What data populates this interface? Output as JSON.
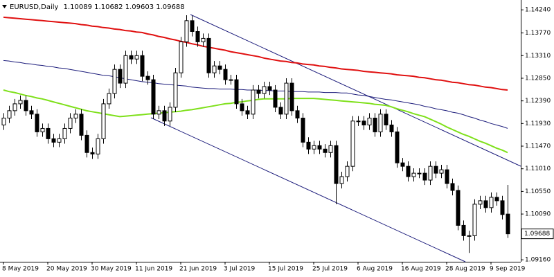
{
  "chart_data": {
    "type": "candlestick",
    "symbol": "EURUSD,Daily",
    "categories": [
      "8 May 2019",
      null,
      null,
      null,
      null,
      null,
      null,
      null,
      "20 May 2019",
      null,
      null,
      null,
      null,
      null,
      null,
      null,
      "30 May 2019",
      null,
      null,
      null,
      null,
      null,
      null,
      null,
      "11 Jun 2019",
      null,
      null,
      null,
      null,
      null,
      null,
      null,
      "21 Jun 2019",
      null,
      null,
      null,
      null,
      null,
      null,
      null,
      "3 Jul 2019",
      null,
      null,
      null,
      null,
      null,
      null,
      null,
      "15 Jul 2019",
      null,
      null,
      null,
      null,
      null,
      null,
      null,
      "25 Jul 2019",
      null,
      null,
      null,
      null,
      null,
      null,
      null,
      "6 Aug 2019",
      null,
      null,
      null,
      null,
      null,
      null,
      null,
      "16 Aug 2019",
      null,
      null,
      null,
      null,
      null,
      null,
      null,
      "28 Aug 2019",
      null,
      null,
      null,
      null,
      null,
      null,
      null,
      "9 Sep 2019",
      null,
      null,
      null
    ],
    "open": [
      1.119,
      1.1204,
      1.1219,
      1.1233,
      1.124,
      1.1219,
      1.1212,
      1.1176,
      1.1183,
      1.1162,
      1.1155,
      1.1162,
      1.1183,
      1.1204,
      1.1212,
      1.1169,
      1.1134,
      1.1131,
      1.1162,
      1.1233,
      1.1254,
      1.1303,
      1.1275,
      1.1331,
      1.1324,
      1.1331,
      1.1289,
      1.1282,
      1.1212,
      1.1219,
      1.1198,
      1.1226,
      1.1296,
      1.1359,
      1.1402,
      1.138,
      1.1359,
      1.1366,
      1.1296,
      1.131,
      1.1303,
      1.1282,
      1.1282,
      1.1233,
      1.1219,
      1.1212,
      1.1261,
      1.1254,
      1.1268,
      1.1261,
      1.1226,
      1.1212,
      1.1275,
      1.1219,
      1.1204,
      1.1155,
      1.1141,
      1.1148,
      1.1141,
      1.1134,
      1.1148,
      1.1071,
      1.1085,
      1.1106,
      1.1198,
      1.1198,
      1.119,
      1.1204,
      1.1176,
      1.1212,
      1.119,
      1.1176,
      1.1113,
      1.1106,
      1.1085,
      1.1092,
      1.1092,
      1.1078,
      1.1106,
      1.1092,
      1.1099,
      1.1071,
      1.1057,
      1.0986,
      1.0965,
      1.0965,
      1.1029,
      1.1036,
      1.1022,
      1.1043,
      1.1036,
      1.10089
    ],
    "high": [
      1.1214,
      1.1229,
      1.1243,
      1.125,
      1.125,
      1.1229,
      1.1222,
      1.1193,
      1.1193,
      1.1172,
      1.1172,
      1.1193,
      1.1214,
      1.1222,
      1.1222,
      1.1179,
      1.1144,
      1.1172,
      1.1243,
      1.1264,
      1.1313,
      1.1313,
      1.1341,
      1.1341,
      1.1341,
      1.1341,
      1.1299,
      1.1292,
      1.1229,
      1.1229,
      1.1236,
      1.1306,
      1.1369,
      1.1413,
      1.1412,
      1.139,
      1.1376,
      1.1376,
      1.132,
      1.132,
      1.1313,
      1.1292,
      1.1292,
      1.1243,
      1.1229,
      1.1271,
      1.1271,
      1.1278,
      1.1278,
      1.1271,
      1.1236,
      1.1285,
      1.1285,
      1.1229,
      1.1214,
      1.1165,
      1.1158,
      1.1158,
      1.1151,
      1.1158,
      1.1158,
      1.1095,
      1.1116,
      1.1208,
      1.1208,
      1.1208,
      1.1214,
      1.1214,
      1.1222,
      1.1222,
      1.12,
      1.1186,
      1.1123,
      1.1116,
      1.1102,
      1.1102,
      1.1102,
      1.1116,
      1.1116,
      1.1109,
      1.1109,
      1.1081,
      1.1067,
      1.0996,
      1.0975,
      1.1039,
      1.1046,
      1.1046,
      1.1053,
      1.1053,
      1.1046,
      1.10682
    ],
    "low": [
      1.118,
      1.1194,
      1.1209,
      1.1223,
      1.1209,
      1.1202,
      1.1166,
      1.1166,
      1.1152,
      1.1145,
      1.1145,
      1.1152,
      1.1173,
      1.1194,
      1.1159,
      1.1124,
      1.1121,
      1.1121,
      1.1152,
      1.1223,
      1.1244,
      1.1265,
      1.1265,
      1.1314,
      1.1314,
      1.1279,
      1.1272,
      1.1202,
      1.1202,
      1.1188,
      1.1188,
      1.1216,
      1.1286,
      1.1349,
      1.137,
      1.1349,
      1.1349,
      1.1286,
      1.1286,
      1.1293,
      1.1272,
      1.1272,
      1.1223,
      1.1209,
      1.1202,
      1.1202,
      1.1244,
      1.1244,
      1.1251,
      1.1216,
      1.1202,
      1.1202,
      1.1209,
      1.1194,
      1.1145,
      1.1131,
      1.1131,
      1.1131,
      1.1124,
      1.1124,
      1.1029,
      1.1061,
      1.1075,
      1.1096,
      1.1188,
      1.118,
      1.118,
      1.1166,
      1.1166,
      1.118,
      1.1166,
      1.1103,
      1.1096,
      1.1075,
      1.1075,
      1.1082,
      1.1068,
      1.1068,
      1.1082,
      1.1082,
      1.1061,
      1.1047,
      1.0976,
      1.0955,
      1.093,
      1.0955,
      1.1019,
      1.1012,
      1.1012,
      1.1026,
      1.0998,
      1.09603
    ],
    "close": [
      1.1204,
      1.1219,
      1.1233,
      1.124,
      1.1219,
      1.1212,
      1.1176,
      1.1183,
      1.1162,
      1.1155,
      1.1162,
      1.1183,
      1.1204,
      1.1212,
      1.1169,
      1.1134,
      1.1131,
      1.1162,
      1.1233,
      1.1254,
      1.1303,
      1.1275,
      1.1331,
      1.1324,
      1.1331,
      1.1289,
      1.1282,
      1.1212,
      1.1219,
      1.1198,
      1.1226,
      1.1296,
      1.1359,
      1.1402,
      1.138,
      1.1359,
      1.1366,
      1.1296,
      1.131,
      1.1303,
      1.1282,
      1.1282,
      1.1233,
      1.1219,
      1.1212,
      1.1261,
      1.1254,
      1.1268,
      1.1261,
      1.1226,
      1.1212,
      1.1275,
      1.1219,
      1.1204,
      1.1155,
      1.1141,
      1.1148,
      1.1141,
      1.1134,
      1.1148,
      1.1071,
      1.1085,
      1.1106,
      1.1198,
      1.1198,
      1.119,
      1.1204,
      1.1176,
      1.1212,
      1.119,
      1.1176,
      1.1113,
      1.1106,
      1.1085,
      1.1092,
      1.1092,
      1.1078,
      1.1106,
      1.1092,
      1.1099,
      1.1071,
      1.1057,
      1.0986,
      1.0965,
      1.0965,
      1.1029,
      1.1036,
      1.1022,
      1.1043,
      1.1036,
      1.1008,
      1.09688
    ],
    "up_color": "#ffffff",
    "down_color": "#000000",
    "overlays": [
      {
        "color": "#e01010",
        "values": [
          1.1409,
          1.1408,
          1.1407,
          1.1406,
          1.1405,
          1.1404,
          1.1403,
          1.1402,
          1.1401,
          1.14,
          1.1399,
          1.1398,
          1.1397,
          1.1396,
          1.1394,
          1.1393,
          1.1391,
          1.139,
          1.1388,
          1.1387,
          1.1385,
          1.1384,
          1.1382,
          1.1381,
          1.1379,
          1.1378,
          1.1375,
          1.1373,
          1.137,
          1.1368,
          1.1365,
          1.1363,
          1.136,
          1.1358,
          1.1355,
          1.1353,
          1.135,
          1.1348,
          1.1346,
          1.1344,
          1.1342,
          1.1339,
          1.1337,
          1.1335,
          1.1333,
          1.1331,
          1.1329,
          1.1326,
          1.1324,
          1.1322,
          1.132,
          1.1319,
          1.1317,
          1.1316,
          1.1314,
          1.1313,
          1.1312,
          1.131,
          1.1309,
          1.1307,
          1.1306,
          1.1304,
          1.1303,
          1.1302,
          1.1301,
          1.1299,
          1.1298,
          1.1297,
          1.1296,
          1.1295,
          1.1294,
          1.1292,
          1.1291,
          1.129,
          1.1289,
          1.1287,
          1.1286,
          1.1284,
          1.1282,
          1.1281,
          1.1279,
          1.1277,
          1.1276,
          1.1274,
          1.1272,
          1.1271,
          1.1269,
          1.1267,
          1.1266,
          1.1264,
          1.1262,
          1.1261
        ]
      },
      {
        "color": "#1a1a7a",
        "values": [
          1.1321,
          1.132,
          1.1318,
          1.1317,
          1.1315,
          1.1314,
          1.1312,
          1.1311,
          1.1309,
          1.1308,
          1.1306,
          1.1305,
          1.1303,
          1.1301,
          1.1299,
          1.1297,
          1.1295,
          1.1293,
          1.1291,
          1.129,
          1.1288,
          1.1286,
          1.1284,
          1.1282,
          1.128,
          1.1278,
          1.1277,
          1.1276,
          1.1274,
          1.1273,
          1.1272,
          1.1271,
          1.127,
          1.1269,
          1.1267,
          1.1266,
          1.1265,
          1.1264,
          1.1264,
          1.1263,
          1.1263,
          1.1263,
          1.1262,
          1.1262,
          1.1261,
          1.1261,
          1.1261,
          1.126,
          1.126,
          1.1259,
          1.1259,
          1.1259,
          1.1258,
          1.1258,
          1.1258,
          1.1257,
          1.1257,
          1.1257,
          1.1256,
          1.1256,
          1.1256,
          1.1255,
          1.1255,
          1.1253,
          1.1251,
          1.125,
          1.1248,
          1.1246,
          1.1244,
          1.1242,
          1.1241,
          1.1239,
          1.1237,
          1.1235,
          1.1233,
          1.1231,
          1.1228,
          1.1226,
          1.1223,
          1.1221,
          1.1219,
          1.1216,
          1.1214,
          1.1211,
          1.1207,
          1.1204,
          1.12,
          1.1197,
          1.1193,
          1.119,
          1.1187,
          1.1183
        ]
      },
      {
        "color": "#7ee01a",
        "values": [
          1.1261,
          1.1258,
          1.1256,
          1.1253,
          1.125,
          1.1248,
          1.1245,
          1.1243,
          1.124,
          1.1237,
          1.1234,
          1.1231,
          1.1228,
          1.1225,
          1.1222,
          1.1219,
          1.1217,
          1.1215,
          1.1213,
          1.1211,
          1.1209,
          1.1207,
          1.1208,
          1.1209,
          1.121,
          1.1211,
          1.1212,
          1.1213,
          1.1214,
          1.1215,
          1.1216,
          1.1217,
          1.1218,
          1.122,
          1.1221,
          1.1223,
          1.1225,
          1.1227,
          1.1229,
          1.1231,
          1.1233,
          1.1234,
          1.1236,
          1.1237,
          1.1239,
          1.124,
          1.1242,
          1.1243,
          1.1243,
          1.1243,
          1.1243,
          1.1243,
          1.1244,
          1.1244,
          1.1244,
          1.1244,
          1.1244,
          1.1243,
          1.1242,
          1.1241,
          1.124,
          1.1239,
          1.1238,
          1.1237,
          1.1236,
          1.1235,
          1.1234,
          1.1232,
          1.1231,
          1.123,
          1.1227,
          1.1223,
          1.122,
          1.1217,
          1.1213,
          1.121,
          1.1207,
          1.1202,
          1.1197,
          1.1192,
          1.1186,
          1.1181,
          1.1176,
          1.1171,
          1.1167,
          1.1162,
          1.1157,
          1.1153,
          1.1148,
          1.1143,
          1.1139,
          1.1134
        ]
      }
    ],
    "ylim": [
      1.0912,
      1.1444
    ],
    "yticks": [
      {
        "value": 1.1424,
        "label": "1.14240"
      },
      {
        "value": 1.1377,
        "label": "1.13770"
      },
      {
        "value": 1.1331,
        "label": "1.13310"
      },
      {
        "value": 1.1285,
        "label": "1.12850"
      },
      {
        "value": 1.1239,
        "label": "1.12390"
      },
      {
        "value": 1.1193,
        "label": "1.11930"
      },
      {
        "value": 1.1147,
        "label": "1.11470"
      },
      {
        "value": 1.1101,
        "label": "1.11010"
      },
      {
        "value": 1.1055,
        "label": "1.10550"
      },
      {
        "value": 1.1009,
        "label": "1.10090"
      },
      {
        "value": 1.0916,
        "label": "1.09160"
      }
    ]
  }
}
